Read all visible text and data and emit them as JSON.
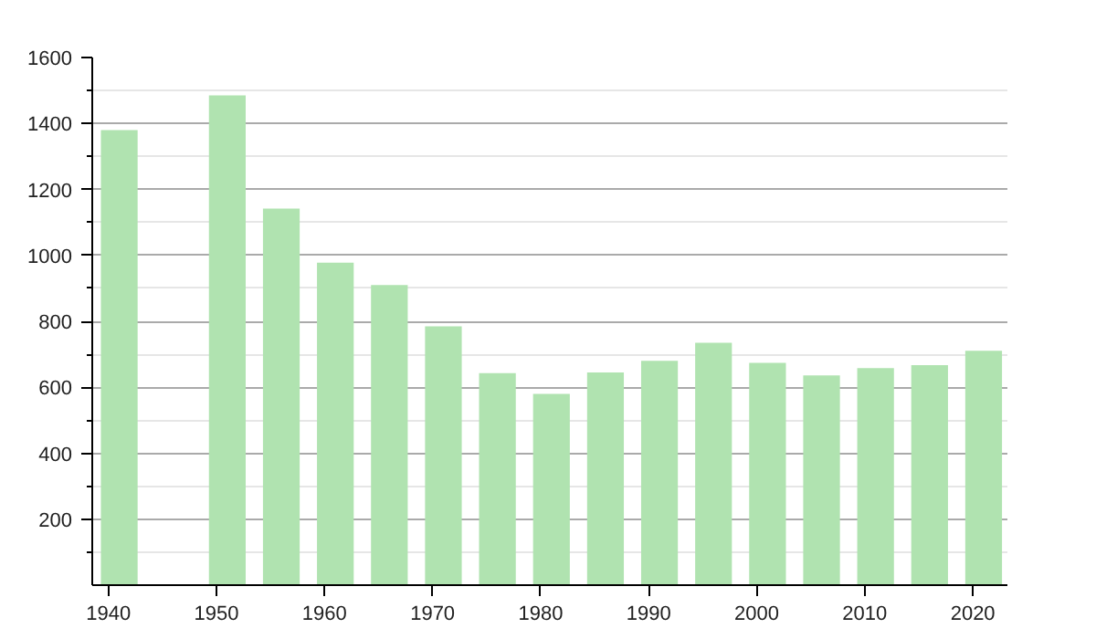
{
  "chart_data": {
    "type": "bar",
    "x": [
      1941,
      1951,
      1956,
      1961,
      1966,
      1971,
      1976,
      1981,
      1986,
      1991,
      1996,
      2001,
      2006,
      2011,
      2016,
      2021
    ],
    "values": [
      1380,
      1485,
      1142,
      978,
      910,
      785,
      643,
      580,
      645,
      680,
      735,
      674,
      636,
      658,
      667,
      711
    ],
    "color": "#b0e3b0",
    "xlim": [
      1938.5,
      2023.2
    ],
    "xticks": [
      1940,
      1950,
      1960,
      1970,
      1980,
      1990,
      2000,
      2010,
      2020
    ],
    "ylim": [
      0,
      1600
    ],
    "yticks": [
      {
        "value": 100,
        "label": null
      },
      200,
      {
        "value": 300,
        "label": null
      },
      400,
      {
        "value": 500,
        "label": null
      },
      600,
      {
        "value": 700,
        "label": null
      },
      800,
      {
        "value": 900,
        "label": null
      },
      1000,
      {
        "value": 1100,
        "label": null
      },
      1200,
      {
        "value": 1300,
        "label": null
      },
      1400,
      {
        "value": 1500,
        "label": null
      },
      1600
    ],
    "grid": "y"
  }
}
